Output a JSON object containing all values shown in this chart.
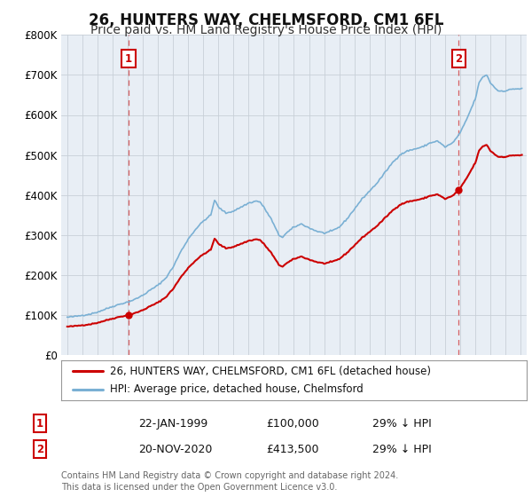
{
  "title": "26, HUNTERS WAY, CHELMSFORD, CM1 6FL",
  "subtitle": "Price paid vs. HM Land Registry's House Price Index (HPI)",
  "background_color": "#ffffff",
  "plot_bg_color": "#e8eef5",
  "ylabel": "",
  "ylim": [
    0,
    800000
  ],
  "yticks": [
    0,
    100000,
    200000,
    300000,
    400000,
    500000,
    600000,
    700000,
    800000
  ],
  "ytick_labels": [
    "£0",
    "£100K",
    "£200K",
    "£300K",
    "£400K",
    "£500K",
    "£600K",
    "£700K",
    "£800K"
  ],
  "legend_label_red": "26, HUNTERS WAY, CHELMSFORD, CM1 6FL (detached house)",
  "legend_label_blue": "HPI: Average price, detached house, Chelmsford",
  "annotation1_label": "1",
  "annotation1_date": "22-JAN-1999",
  "annotation1_price": "£100,000",
  "annotation1_hpi": "29% ↓ HPI",
  "annotation2_label": "2",
  "annotation2_date": "20-NOV-2020",
  "annotation2_price": "£413,500",
  "annotation2_hpi": "29% ↓ HPI",
  "footer": "Contains HM Land Registry data © Crown copyright and database right 2024.\nThis data is licensed under the Open Government Licence v3.0.",
  "red_color": "#cc0000",
  "blue_color": "#7ab0d4",
  "grid_color": "#c8d0d8",
  "sale1_year": 1999.06,
  "sale1_value": 100000,
  "sale2_year": 2020.9,
  "sale2_value": 413500,
  "title_fontsize": 12,
  "subtitle_fontsize": 10
}
